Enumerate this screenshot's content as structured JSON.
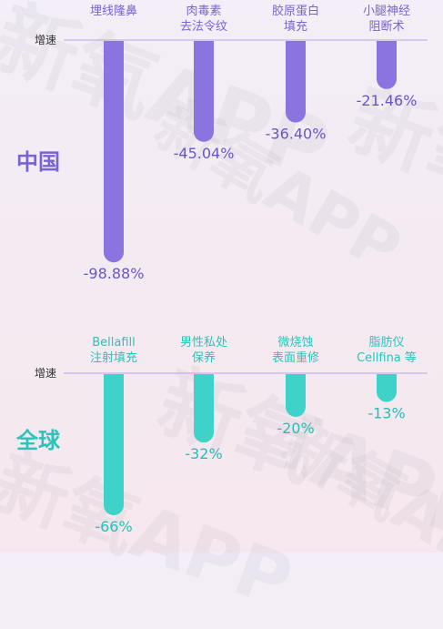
{
  "watermark_text": "新氧APP",
  "colors": {
    "china_bar": "#8b74df",
    "global_bar": "#3fd2c9",
    "china_label": "#7a63d2",
    "global_label": "#2cc3ba",
    "header_text": "#7a63d2",
    "global_header_text": "#2cc3ba",
    "value_text": "#6a55c8",
    "global_value_text": "#27bdb4",
    "axis_line": "#b7a7e8",
    "axis_label": "#333333"
  },
  "chart_data": [
    {
      "type": "bar",
      "region_label": "中国",
      "axis_label": "增速",
      "categories": [
        "埋线隆鼻",
        "肉毒素\n去法令纹",
        "胶原蛋白\n填充",
        "小腿神经\n阻断术"
      ],
      "values": [
        -98.88,
        -45.04,
        -36.4,
        -21.46
      ],
      "value_labels": [
        "-98.88%",
        "-45.04%",
        "-36.40%",
        "-21.46%"
      ],
      "ylim": [
        -100,
        0
      ]
    },
    {
      "type": "bar",
      "region_label": "全球",
      "axis_label": "增速",
      "categories": [
        "Bellafill\n注射填充",
        "男性私处\n保养",
        "微烧蚀\n表面重修",
        "脂肪仪\nCellfina 等"
      ],
      "values": [
        -66,
        -32,
        -20,
        -13
      ],
      "value_labels": [
        "-66%",
        "-32%",
        "-20%",
        "-13%"
      ],
      "ylim": [
        -66,
        0
      ]
    }
  ]
}
